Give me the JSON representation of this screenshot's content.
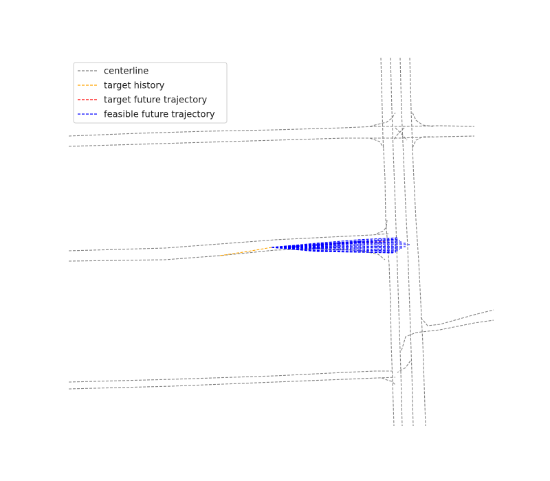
{
  "chart_data": {
    "type": "line",
    "title": "",
    "xlabel": "",
    "ylabel": "",
    "grid": false,
    "axes_visible": false,
    "legend_placement": "top-left",
    "colors": {
      "centerline": "#808080",
      "history": "#FFA500",
      "target_future": "#FF0000",
      "feasible": "#0000FF"
    },
    "legend": [
      {
        "label": "centerline",
        "color": "#808080"
      },
      {
        "label": "target history",
        "color": "#FFA500"
      },
      {
        "label": "target future trajectory",
        "color": "#FF0000"
      },
      {
        "label": "feasible future trajectory",
        "color": "#0000FF"
      }
    ],
    "series": [
      {
        "name": "centerline",
        "lines": [
          [
            [
              100,
              198
            ],
            [
              200,
              194
            ],
            [
              300,
              191
            ],
            [
              400,
              189
            ],
            [
              500,
              186
            ],
            [
              545,
              184
            ],
            [
              580,
              184
            ],
            [
              640,
              183
            ],
            [
              690,
              184
            ]
          ],
          [
            [
              100,
              213
            ],
            [
              200,
              210
            ],
            [
              300,
              207
            ],
            [
              400,
              204
            ],
            [
              500,
              201
            ],
            [
              545,
              201
            ],
            [
              580,
              201
            ],
            [
              640,
              199
            ],
            [
              690,
              198
            ]
          ],
          [
            [
              100,
              365
            ],
            [
              240,
              361
            ],
            [
              320,
              355
            ],
            [
              400,
              349
            ],
            [
              480,
              345
            ],
            [
              540,
              342
            ],
            [
              565,
              340
            ]
          ],
          [
            [
              100,
              380
            ],
            [
              240,
              378
            ],
            [
              320,
              372
            ],
            [
              400,
              364
            ],
            [
              460,
              362
            ],
            [
              520,
              364
            ],
            [
              550,
              370
            ],
            [
              560,
              378
            ]
          ],
          [
            [
              100,
              556
            ],
            [
              250,
              552
            ],
            [
              400,
              547
            ],
            [
              500,
              542
            ],
            [
              545,
              540
            ],
            [
              570,
              540
            ]
          ],
          [
            [
              100,
              566
            ],
            [
              250,
              562
            ],
            [
              400,
              556
            ],
            [
              500,
              552
            ],
            [
              550,
              550
            ],
            [
              575,
              549
            ]
          ],
          [
            [
              554,
              84
            ],
            [
              556,
              160
            ],
            [
              557,
              200
            ],
            [
              560,
              260
            ],
            [
              561,
              320
            ],
            [
              563,
              345
            ],
            [
              566,
              385
            ],
            [
              568,
              440
            ],
            [
              569,
              500
            ],
            [
              571,
              555
            ],
            [
              573,
              620
            ]
          ],
          [
            [
              568,
              84
            ],
            [
              570,
              160
            ],
            [
              572,
              220
            ],
            [
              575,
              300
            ],
            [
              577,
              360
            ],
            [
              579,
              420
            ],
            [
              581,
              480
            ],
            [
              583,
              540
            ],
            [
              585,
              620
            ]
          ],
          [
            [
              582,
              84
            ],
            [
              584,
              160
            ],
            [
              587,
              230
            ],
            [
              590,
              300
            ],
            [
              593,
              360
            ],
            [
              595,
              420
            ],
            [
              597,
              480
            ],
            [
              599,
              540
            ],
            [
              601,
              620
            ]
          ],
          [
            [
              596,
              84
            ],
            [
              598,
              160
            ],
            [
              601,
              240
            ],
            [
              605,
              320
            ],
            [
              609,
              380
            ],
            [
              612,
              440
            ],
            [
              615,
              500
            ],
            [
              617,
              560
            ],
            [
              619,
              620
            ]
          ],
          [
            [
              538,
              184
            ],
            [
              553,
              180
            ],
            [
              562,
              178
            ],
            [
              570,
              172
            ],
            [
              575,
              164
            ]
          ],
          [
            [
              538,
              201
            ],
            [
              552,
              206
            ],
            [
              558,
              215
            ]
          ],
          [
            [
              600,
              164
            ],
            [
              605,
              175
            ],
            [
              615,
              182
            ],
            [
              630,
              184
            ]
          ],
          [
            [
              600,
              215
            ],
            [
              605,
              204
            ],
            [
              615,
              199
            ],
            [
              630,
              199
            ]
          ],
          [
            [
              575,
              186
            ],
            [
              585,
              196
            ],
            [
              592,
              204
            ]
          ],
          [
            [
              588,
              186
            ],
            [
              578,
              196
            ],
            [
              572,
              204
            ]
          ],
          [
            [
              548,
              340
            ],
            [
              558,
              336
            ],
            [
              562,
              330
            ],
            [
              563,
              320
            ]
          ],
          [
            [
              612,
              462
            ],
            [
              622,
              474
            ],
            [
              640,
              472
            ],
            [
              690,
              458
            ],
            [
              718,
              451
            ]
          ],
          [
            [
              584,
              510
            ],
            [
              590,
              490
            ],
            [
              605,
              484
            ],
            [
              640,
              480
            ],
            [
              690,
              470
            ],
            [
              718,
              466
            ]
          ],
          [
            [
              597,
              525
            ],
            [
              590,
              535
            ],
            [
              578,
              542
            ]
          ],
          [
            [
              555,
              550
            ],
            [
              563,
              553
            ],
            [
              570,
              555
            ],
            [
              575,
              560
            ]
          ]
        ]
      },
      {
        "name": "target history",
        "lines": [
          [
            [
              320,
              372
            ],
            [
              360,
              366
            ],
            [
              395,
              360
            ]
          ]
        ]
      },
      {
        "name": "target future trajectory",
        "lines": [
          [
            [
              395,
              360
            ],
            [
              440,
              358
            ],
            [
              480,
              355
            ],
            [
              520,
              353
            ],
            [
              560,
              352
            ]
          ]
        ]
      },
      {
        "name": "feasible future trajectory",
        "lines": [
          [
            [
              395,
              360
            ],
            [
              460,
              354
            ],
            [
              520,
              349
            ],
            [
              578,
              346
            ]
          ],
          [
            [
              395,
              360
            ],
            [
              460,
              355
            ],
            [
              520,
              351
            ],
            [
              580,
              348
            ]
          ],
          [
            [
              395,
              360
            ],
            [
              460,
              356
            ],
            [
              520,
              352
            ],
            [
              582,
              350
            ]
          ],
          [
            [
              395,
              360
            ],
            [
              460,
              357
            ],
            [
              520,
              353
            ],
            [
              584,
              352
            ]
          ],
          [
            [
              395,
              360
            ],
            [
              460,
              358
            ],
            [
              520,
              354
            ],
            [
              590,
              354
            ]
          ],
          [
            [
              395,
              360
            ],
            [
              460,
              359
            ],
            [
              520,
              356
            ],
            [
              596,
              356
            ]
          ],
          [
            [
              395,
              360
            ],
            [
              460,
              360
            ],
            [
              520,
              358
            ],
            [
              590,
              359
            ]
          ],
          [
            [
              395,
              360
            ],
            [
              460,
              361
            ],
            [
              520,
              360
            ],
            [
              586,
              361
            ]
          ],
          [
            [
              395,
              360
            ],
            [
              460,
              362
            ],
            [
              520,
              362
            ],
            [
              582,
              363
            ]
          ],
          [
            [
              395,
              360
            ],
            [
              460,
              364
            ],
            [
              520,
              364
            ],
            [
              580,
              365
            ]
          ],
          [
            [
              395,
              360
            ],
            [
              460,
              365
            ],
            [
              520,
              366
            ],
            [
              576,
              367
            ]
          ],
          [
            [
              395,
              360
            ],
            [
              460,
              366
            ],
            [
              520,
              367
            ],
            [
              572,
              368
            ]
          ]
        ],
        "cross_sections": {
          "x_start": 410,
          "x_end": 575,
          "step": 5,
          "top_start": 359,
          "top_end": 346,
          "bottom_start": 361,
          "bottom_end": 368
        }
      }
    ]
  }
}
